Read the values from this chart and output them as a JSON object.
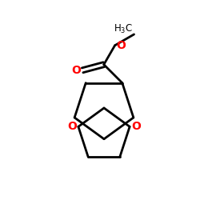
{
  "bg_color": "#ffffff",
  "bond_color": "#000000",
  "oxygen_color": "#ff0000",
  "line_width": 2.0,
  "fig_size": [
    2.5,
    2.5
  ],
  "dpi": 100,
  "xlim": [
    0,
    10
  ],
  "ylim": [
    0,
    10
  ]
}
